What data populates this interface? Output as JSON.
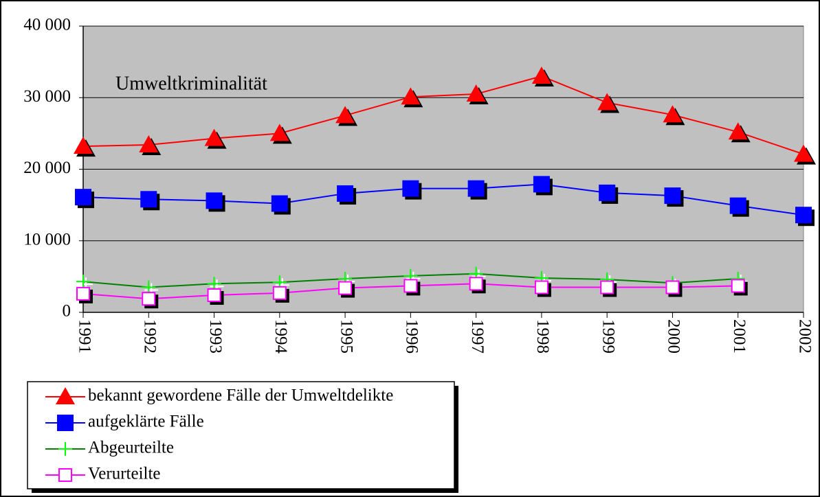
{
  "chart_data": {
    "type": "line",
    "title": "Umweltkriminalität",
    "categories": [
      "1991",
      "1992",
      "1993",
      "1994",
      "1995",
      "1996",
      "1997",
      "1998",
      "1999",
      "2000",
      "2001",
      "2002"
    ],
    "series": [
      {
        "name": "bekannt gewordene Fälle der Umweltdelikte",
        "color": "#ff0000",
        "marker": "triangle",
        "values": [
          23200,
          23400,
          24300,
          25000,
          27500,
          30100,
          30500,
          33000,
          29300,
          27600,
          25200,
          22100
        ]
      },
      {
        "name": "aufgeklärte Fälle",
        "color": "#0000ff",
        "marker": "square",
        "values": [
          16100,
          15800,
          15600,
          15200,
          16600,
          17300,
          17300,
          17900,
          16700,
          16300,
          14900,
          13600
        ]
      },
      {
        "name": "Abgeurteilte",
        "color": "#008000",
        "marker": "plus",
        "values": [
          4300,
          3500,
          4000,
          4200,
          4700,
          5100,
          5400,
          4800,
          4600,
          4100,
          4700,
          null
        ]
      },
      {
        "name": "Verurteilte",
        "color": "#ff00ff",
        "marker": "hollow-square",
        "values": [
          2600,
          1900,
          2400,
          2700,
          3400,
          3700,
          4000,
          3500,
          3500,
          3500,
          3700,
          null
        ]
      }
    ],
    "ylim": [
      0,
      40000
    ],
    "yticks": [
      0,
      {
        "value": 10000,
        "label": "10 000"
      },
      {
        "value": 20000,
        "label": "20 000"
      },
      {
        "value": 30000,
        "label": "30 000"
      },
      {
        "value": 40000,
        "label": "40 000"
      }
    ],
    "grid": true,
    "legend": "bottom-left"
  }
}
